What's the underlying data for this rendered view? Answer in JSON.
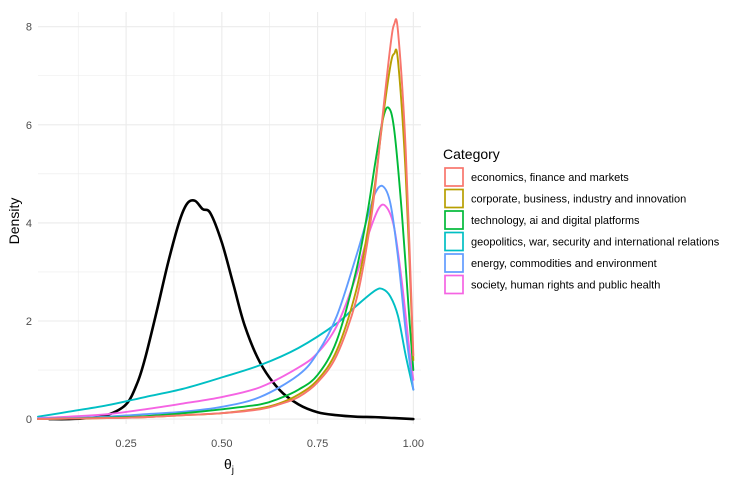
{
  "chart_data": {
    "type": "line",
    "xlabel": "θ",
    "xlabel_sub": "j",
    "ylabel": "Density",
    "xlim": [
      0.02,
      1.02
    ],
    "ylim": [
      -0.1,
      8.3
    ],
    "x_ticks": [
      0.25,
      0.5,
      0.75,
      1.0
    ],
    "x_tick_labels": [
      "0.25",
      "0.50",
      "0.75",
      "1.00"
    ],
    "y_ticks": [
      0,
      2,
      4,
      6,
      8
    ],
    "y_tick_labels": [
      "0",
      "2",
      "4",
      "6",
      "8"
    ],
    "grid": true,
    "legend": {
      "title": "Category",
      "position": "right",
      "entries": [
        {
          "label": "economics, finance and markets",
          "color": "#F8766D"
        },
        {
          "label": "corporate, business, industry and innovation",
          "color": "#B79F00"
        },
        {
          "label": "technology, ai and digital platforms",
          "color": "#00BA38"
        },
        {
          "label": "geopolitics, war, security and international relations",
          "color": "#00BFC4"
        },
        {
          "label": "energy, commodities and environment",
          "color": "#619CFF"
        },
        {
          "label": "society, human rights and public health",
          "color": "#F564E3"
        }
      ]
    },
    "series": [
      {
        "color": "#000000",
        "width": 2.6,
        "x": [
          0.05,
          0.1,
          0.15,
          0.2,
          0.25,
          0.28,
          0.3,
          0.33,
          0.36,
          0.39,
          0.41,
          0.43,
          0.45,
          0.47,
          0.5,
          0.53,
          0.56,
          0.6,
          0.65,
          0.7,
          0.75,
          0.8,
          0.85,
          0.9,
          0.95,
          1.0
        ],
        "y": [
          0,
          0,
          0.02,
          0.08,
          0.3,
          0.75,
          1.25,
          2.2,
          3.2,
          4.05,
          4.4,
          4.45,
          4.28,
          4.2,
          3.6,
          2.75,
          1.9,
          1.15,
          0.6,
          0.3,
          0.14,
          0.08,
          0.05,
          0.04,
          0.02,
          0
        ]
      },
      {
        "color": "#00BFC4",
        "width": 1.9,
        "x": [
          0.02,
          0.1,
          0.2,
          0.3,
          0.4,
          0.5,
          0.6,
          0.7,
          0.8,
          0.85,
          0.9,
          0.92,
          0.94,
          0.96,
          0.98,
          1.0
        ],
        "y": [
          0.05,
          0.15,
          0.28,
          0.45,
          0.62,
          0.85,
          1.1,
          1.45,
          1.95,
          2.3,
          2.62,
          2.65,
          2.5,
          2.1,
          1.3,
          0.6
        ]
      },
      {
        "color": "#F564E3",
        "width": 1.9,
        "x": [
          0.02,
          0.1,
          0.2,
          0.3,
          0.4,
          0.5,
          0.6,
          0.7,
          0.75,
          0.8,
          0.85,
          0.88,
          0.91,
          0.93,
          0.95,
          0.97,
          0.99,
          1.0
        ],
        "y": [
          0.02,
          0.05,
          0.1,
          0.2,
          0.32,
          0.45,
          0.65,
          1.05,
          1.35,
          1.9,
          2.9,
          3.7,
          4.3,
          4.32,
          3.9,
          2.8,
          1.4,
          0.8
        ]
      },
      {
        "color": "#619CFF",
        "width": 1.9,
        "x": [
          0.02,
          0.1,
          0.2,
          0.3,
          0.4,
          0.5,
          0.6,
          0.7,
          0.75,
          0.8,
          0.85,
          0.88,
          0.9,
          0.92,
          0.94,
          0.96,
          0.98,
          1.0
        ],
        "y": [
          0.01,
          0.02,
          0.05,
          0.1,
          0.15,
          0.25,
          0.45,
          0.9,
          1.35,
          2.1,
          3.3,
          4.1,
          4.6,
          4.75,
          4.4,
          3.3,
          1.8,
          0.6
        ]
      },
      {
        "color": "#00BA38",
        "width": 1.9,
        "x": [
          0.02,
          0.1,
          0.2,
          0.3,
          0.4,
          0.5,
          0.6,
          0.65,
          0.7,
          0.75,
          0.8,
          0.85,
          0.88,
          0.9,
          0.92,
          0.935,
          0.95,
          0.97,
          0.99,
          1.0
        ],
        "y": [
          0,
          0.01,
          0.03,
          0.06,
          0.12,
          0.2,
          0.3,
          0.42,
          0.6,
          0.9,
          1.6,
          3.0,
          4.2,
          5.2,
          6.1,
          6.35,
          5.9,
          4.2,
          2.0,
          1.0
        ]
      },
      {
        "color": "#B79F00",
        "width": 1.9,
        "x": [
          0.02,
          0.1,
          0.2,
          0.3,
          0.4,
          0.5,
          0.6,
          0.65,
          0.7,
          0.75,
          0.8,
          0.85,
          0.88,
          0.9,
          0.92,
          0.94,
          0.95,
          0.96,
          0.98,
          1.0
        ],
        "y": [
          0,
          0.01,
          0.02,
          0.04,
          0.08,
          0.12,
          0.22,
          0.32,
          0.5,
          0.8,
          1.4,
          2.6,
          3.8,
          4.8,
          6.1,
          7.2,
          7.45,
          7.3,
          5.0,
          1.2
        ]
      },
      {
        "color": "#F8766D",
        "width": 1.9,
        "x": [
          0.02,
          0.1,
          0.2,
          0.3,
          0.4,
          0.5,
          0.6,
          0.65,
          0.7,
          0.75,
          0.8,
          0.85,
          0.88,
          0.9,
          0.92,
          0.94,
          0.95,
          0.96,
          0.98,
          1.0
        ],
        "y": [
          0,
          0.01,
          0.02,
          0.04,
          0.08,
          0.12,
          0.2,
          0.3,
          0.45,
          0.75,
          1.3,
          2.4,
          3.6,
          4.7,
          6.2,
          7.6,
          8.05,
          7.9,
          5.5,
          1.3
        ]
      }
    ]
  }
}
